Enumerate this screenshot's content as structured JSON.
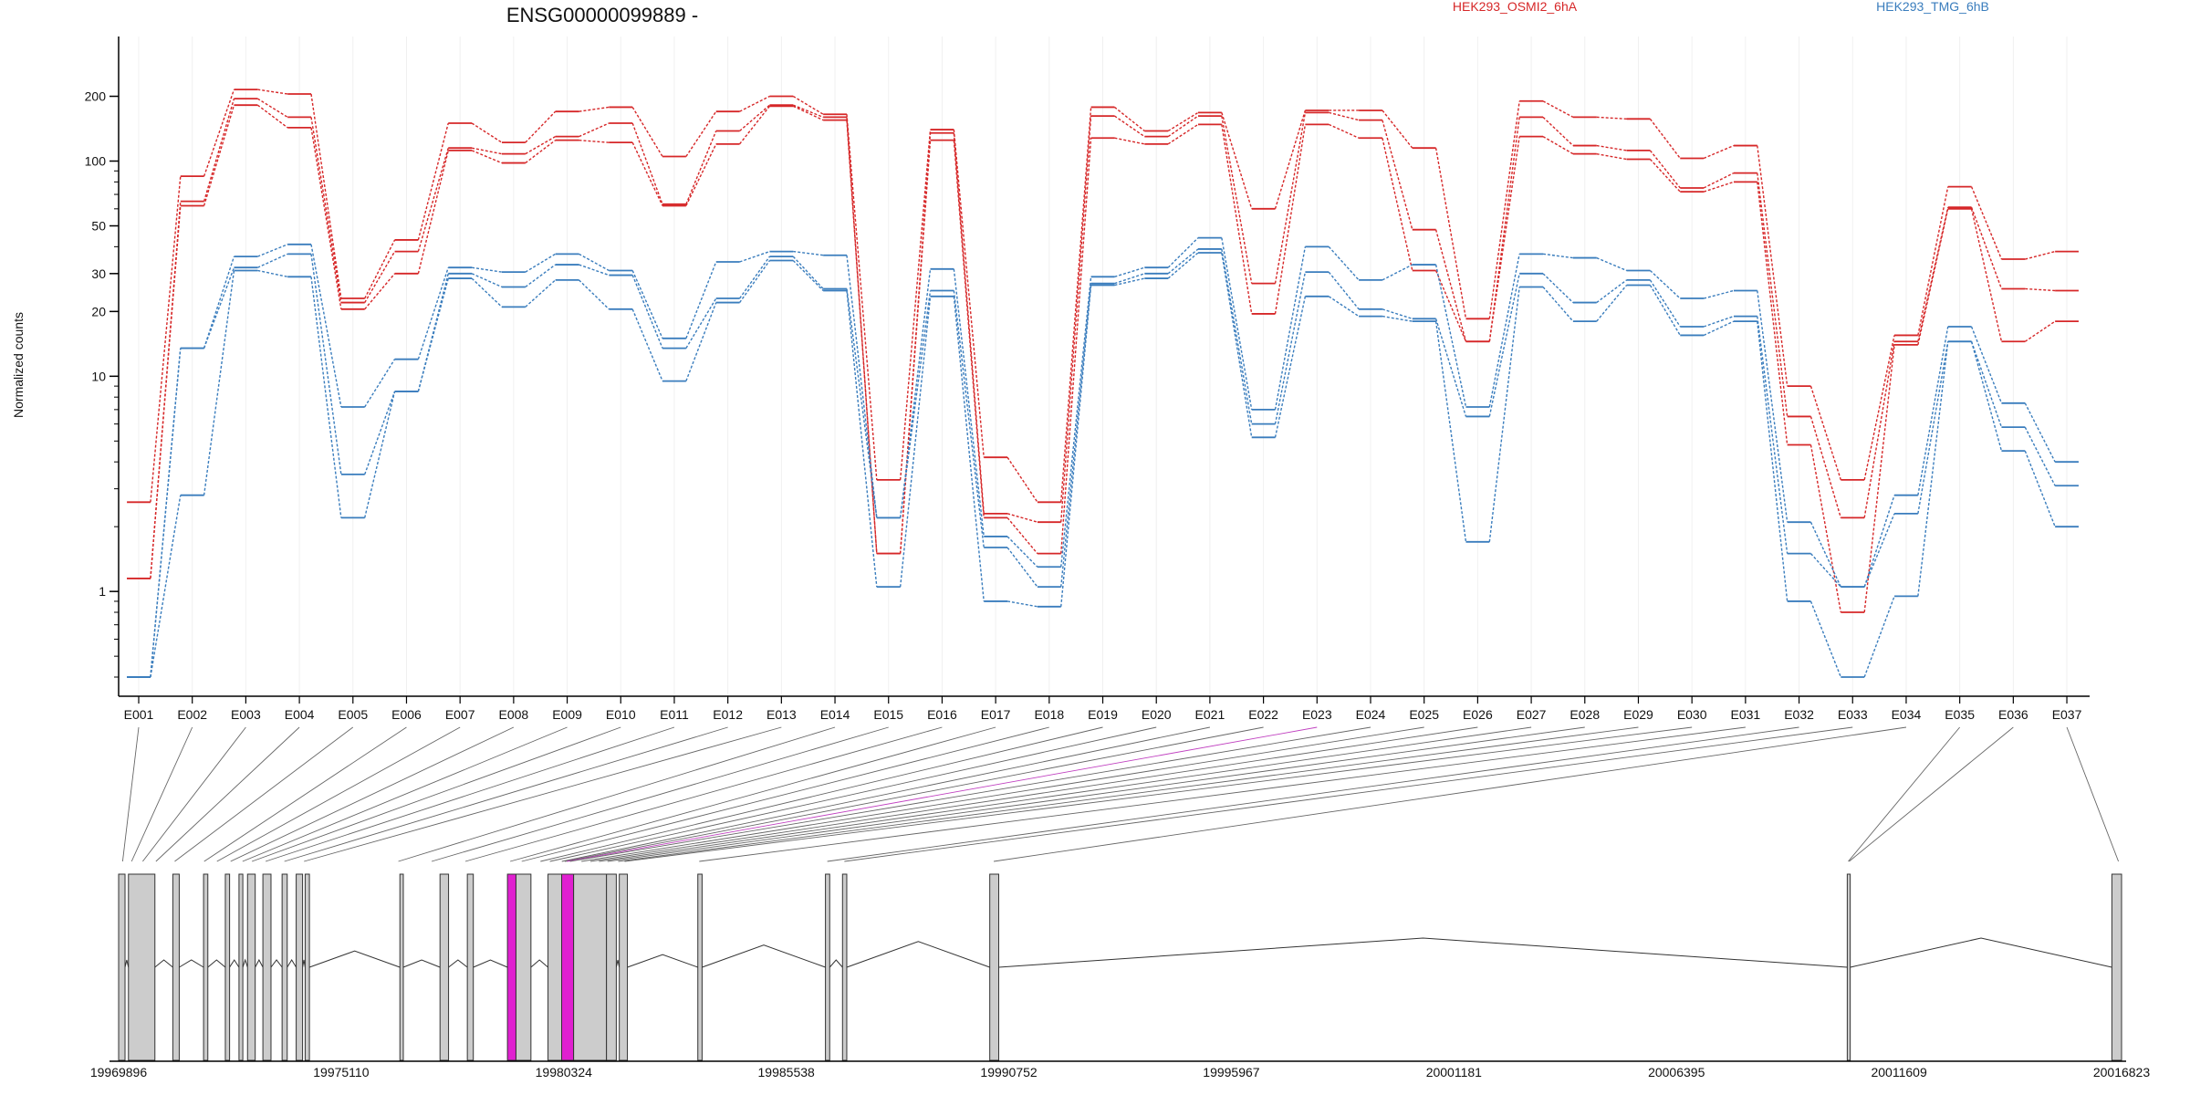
{
  "title": "ENSG00000099889 -",
  "ylabel": "Normalized counts",
  "colors": {
    "group_a": "#d62728",
    "group_b": "#3a7dbd",
    "highlight_exon": "#e020d0",
    "exon_fill": "#cccccc"
  },
  "chart_data": {
    "type": "line",
    "yscale": "log",
    "ylim": [
      0.4,
      300
    ],
    "y_ticks": [
      1,
      10,
      20,
      30,
      50,
      100,
      200
    ],
    "categories": [
      "E001",
      "E002",
      "E003",
      "E004",
      "E005",
      "E006",
      "E007",
      "E008",
      "E009",
      "E010",
      "E011",
      "E012",
      "E013",
      "E014",
      "E015",
      "E016",
      "E017",
      "E018",
      "E019",
      "E020",
      "E021",
      "E022",
      "E023",
      "E024",
      "E025",
      "E026",
      "E027",
      "E028",
      "E029",
      "E030",
      "E031",
      "E032",
      "E033",
      "E034",
      "E035",
      "E036",
      "E037"
    ],
    "legend": [
      {
        "label": "HEK293_OSMI2_6hA",
        "color": "#d62728"
      },
      {
        "label": "HEK293_TMG_6hB",
        "color": "#3a7dbd"
      }
    ],
    "series": [
      {
        "group": "HEK293_OSMI2_6hA",
        "values": [
          2.6,
          85,
          215,
          205,
          23,
          43,
          150,
          122,
          170,
          178,
          105,
          170,
          200,
          165,
          3.3,
          140,
          4.2,
          2.6,
          178,
          138,
          168,
          60,
          172,
          172,
          115,
          18.5,
          190,
          160,
          157,
          103,
          118,
          9,
          3.3,
          15.5,
          76,
          35,
          38
        ]
      },
      {
        "group": "HEK293_OSMI2_6hA",
        "values": [
          1.15,
          65,
          195,
          160,
          22,
          38,
          115,
          108,
          130,
          150,
          63,
          138,
          182,
          160,
          1.5,
          135,
          2.3,
          2.1,
          162,
          130,
          162,
          27,
          168,
          155,
          48,
          14.5,
          160,
          118,
          112,
          75,
          88,
          6.5,
          2.2,
          14.5,
          61,
          25.5,
          25
        ]
      },
      {
        "group": "HEK293_OSMI2_6hA",
        "values": [
          1.15,
          62,
          182,
          143,
          20.5,
          30,
          112,
          98,
          125,
          122,
          62,
          120,
          180,
          155,
          1.5,
          125,
          2.2,
          1.5,
          128,
          120,
          148,
          19.5,
          148,
          128,
          31,
          14.5,
          130,
          108,
          102,
          72,
          80,
          4.8,
          0.8,
          14,
          60,
          14.5,
          18
        ]
      },
      {
        "group": "HEK293_TMG_6hB",
        "values": [
          0.4,
          13.5,
          36,
          41,
          7.2,
          12,
          32,
          30.5,
          37,
          31,
          15,
          34,
          38,
          36.5,
          2.2,
          31.5,
          1.8,
          1.3,
          29,
          32,
          44,
          7,
          40,
          28,
          33,
          7.2,
          37,
          35.5,
          31,
          23,
          25,
          2.1,
          1.05,
          2.8,
          17,
          7.5,
          4
        ]
      },
      {
        "group": "HEK293_TMG_6hB",
        "values": [
          0.4,
          13.5,
          32,
          37,
          3.5,
          8.5,
          30,
          26,
          33,
          29.5,
          13.5,
          23,
          36,
          25.5,
          2.2,
          25,
          1.6,
          1.05,
          27,
          30,
          39,
          6,
          30.5,
          20.5,
          18.5,
          6.5,
          30,
          22,
          28,
          17,
          19,
          1.5,
          1.05,
          2.3,
          14.5,
          5.8,
          3.1
        ]
      },
      {
        "group": "HEK293_TMG_6hB",
        "values": [
          0.4,
          2.8,
          31,
          29,
          2.2,
          8.5,
          28.5,
          21,
          28,
          20.5,
          9.5,
          22,
          34.5,
          25,
          1.05,
          23.5,
          0.9,
          0.85,
          26.5,
          28.5,
          37.5,
          5.2,
          23.5,
          19,
          18,
          1.7,
          26,
          18,
          26.5,
          15.5,
          18,
          0.9,
          0.4,
          0.95,
          14.5,
          4.5,
          2
        ]
      }
    ],
    "gene_model": {
      "axis_ticks": [
        "19969896",
        "19975110",
        "19980324",
        "19985538",
        "19990752",
        "19995967",
        "20001181",
        "20006395",
        "20011609",
        "20016823"
      ],
      "range": [
        19969896,
        20016823
      ],
      "exons": [
        {
          "start": 19969896,
          "end": 19970046,
          "hl": false
        },
        {
          "start": 19970126,
          "end": 19970746,
          "hl": false
        },
        {
          "start": 19971166,
          "end": 19971316,
          "hl": false
        },
        {
          "start": 19971886,
          "end": 19971986,
          "hl": false
        },
        {
          "start": 19972396,
          "end": 19972496,
          "hl": false
        },
        {
          "start": 19972716,
          "end": 19972806,
          "hl": false
        },
        {
          "start": 19972916,
          "end": 19973096,
          "hl": false
        },
        {
          "start": 19973276,
          "end": 19973466,
          "hl": false
        },
        {
          "start": 19973726,
          "end": 19973846,
          "hl": false
        },
        {
          "start": 19974056,
          "end": 19974206,
          "hl": false
        },
        {
          "start": 19974266,
          "end": 19974366,
          "hl": false
        },
        {
          "start": 19976486,
          "end": 19976566,
          "hl": false
        },
        {
          "start": 19977426,
          "end": 19977626,
          "hl": false
        },
        {
          "start": 19978066,
          "end": 19978206,
          "hl": false
        },
        {
          "start": 19979006,
          "end": 19979206,
          "hl": true
        },
        {
          "start": 19979206,
          "end": 19979556,
          "hl": false
        },
        {
          "start": 19979956,
          "end": 19980276,
          "hl": false
        },
        {
          "start": 19980276,
          "end": 19980556,
          "hl": true
        },
        {
          "start": 19980556,
          "end": 19981326,
          "hl": false
        },
        {
          "start": 19981326,
          "end": 19981556,
          "hl": false
        },
        {
          "start": 19981626,
          "end": 19981816,
          "hl": false
        },
        {
          "start": 19983466,
          "end": 19983566,
          "hl": false
        },
        {
          "start": 19986456,
          "end": 19986556,
          "hl": false
        },
        {
          "start": 19986856,
          "end": 19986956,
          "hl": false
        },
        {
          "start": 19990306,
          "end": 19990516,
          "hl": false
        },
        {
          "start": 20010396,
          "end": 20010466,
          "hl": false
        },
        {
          "start": 20016596,
          "end": 20016823,
          "hl": false
        }
      ],
      "exon_links": [
        {
          "x": 19969990,
          "hl": false
        },
        {
          "x": 19970200,
          "hl": false
        },
        {
          "x": 19970460,
          "hl": false
        },
        {
          "x": 19970770,
          "hl": false
        },
        {
          "x": 19971210,
          "hl": false
        },
        {
          "x": 19971900,
          "hl": false
        },
        {
          "x": 19972200,
          "hl": false
        },
        {
          "x": 19972520,
          "hl": false
        },
        {
          "x": 19972800,
          "hl": false
        },
        {
          "x": 19973020,
          "hl": false
        },
        {
          "x": 19973340,
          "hl": false
        },
        {
          "x": 19973780,
          "hl": false
        },
        {
          "x": 19974240,
          "hl": false
        },
        {
          "x": 19976450,
          "hl": false
        },
        {
          "x": 19977230,
          "hl": false
        },
        {
          "x": 19978020,
          "hl": false
        },
        {
          "x": 19979070,
          "hl": false
        },
        {
          "x": 19979340,
          "hl": false
        },
        {
          "x": 19979780,
          "hl": false
        },
        {
          "x": 19980000,
          "hl": false
        },
        {
          "x": 19980280,
          "hl": false
        },
        {
          "x": 19980350,
          "hl": false
        },
        {
          "x": 19980400,
          "hl": true
        },
        {
          "x": 19980470,
          "hl": false
        },
        {
          "x": 19980740,
          "hl": false
        },
        {
          "x": 19980950,
          "hl": false
        },
        {
          "x": 19981150,
          "hl": false
        },
        {
          "x": 19981350,
          "hl": false
        },
        {
          "x": 19981600,
          "hl": false
        },
        {
          "x": 19981750,
          "hl": false
        },
        {
          "x": 19983500,
          "hl": false
        },
        {
          "x": 19986500,
          "hl": false
        },
        {
          "x": 19986900,
          "hl": false
        },
        {
          "x": 19990400,
          "hl": false
        },
        {
          "x": 20010420,
          "hl": false
        },
        {
          "x": 20010440,
          "hl": false
        },
        {
          "x": 20016750,
          "hl": false
        }
      ]
    }
  }
}
